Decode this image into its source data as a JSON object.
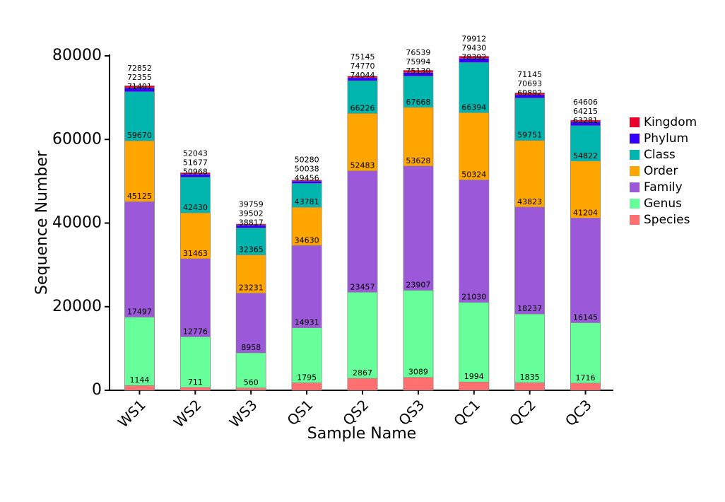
{
  "chart_data": {
    "type": "bar",
    "overlap": true,
    "xlabel": "Sample Name",
    "ylabel": "Sequence Number",
    "categories": [
      "WS1",
      "WS2",
      "WS3",
      "QS1",
      "QS2",
      "QS3",
      "QC1",
      "QC2",
      "QC3"
    ],
    "series": [
      {
        "name": "Kingdom",
        "color": "#e8002a",
        "values": [
          72852,
          52043,
          39759,
          50280,
          75145,
          76539,
          79912,
          71145,
          64606
        ]
      },
      {
        "name": "Phylum",
        "color": "#3300ff",
        "values": [
          72355,
          51677,
          39502,
          50038,
          74770,
          75994,
          79430,
          70693,
          64215
        ]
      },
      {
        "name": "Class",
        "color": "#00b5ad",
        "values": [
          71401,
          50968,
          38817,
          49456,
          74044,
          75130,
          78392,
          69892,
          63281
        ]
      },
      {
        "name": "Order",
        "color": "#ffa500",
        "values": [
          59670,
          42430,
          32365,
          43781,
          66226,
          67668,
          66394,
          59751,
          54822
        ]
      },
      {
        "name": "Family",
        "color": "#9b59d9",
        "values": [
          45125,
          31463,
          23231,
          34630,
          52483,
          53628,
          50324,
          43823,
          41204
        ]
      },
      {
        "name": "Genus",
        "color": "#66ff99",
        "values": [
          17497,
          12776,
          8958,
          14931,
          23457,
          23907,
          21030,
          18237,
          16145
        ]
      },
      {
        "name": "Species",
        "color": "#ff7070",
        "values": [
          1144,
          711,
          560,
          1795,
          2867,
          3089,
          1994,
          1835,
          1716
        ]
      }
    ],
    "ylim": [
      0,
      80000
    ],
    "yticks": [
      0,
      20000,
      40000,
      60000,
      80000
    ],
    "grid": false,
    "legend": "right"
  }
}
